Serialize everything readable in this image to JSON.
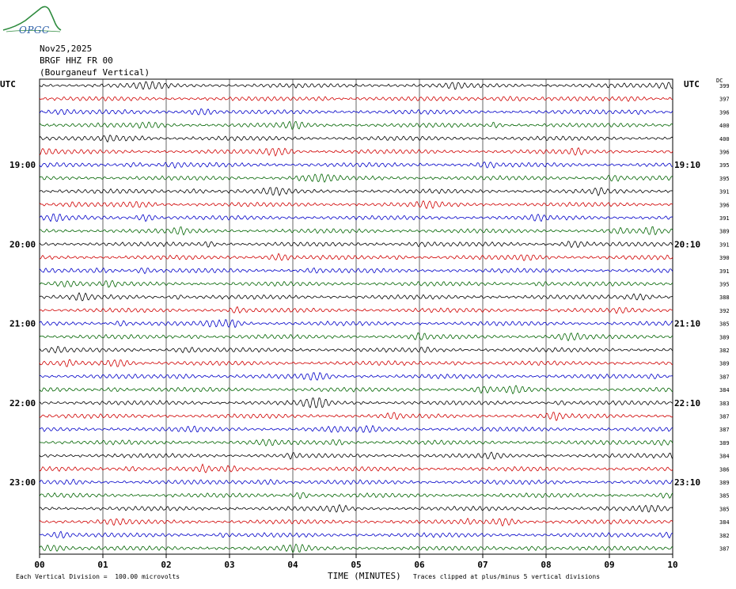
{
  "logo": {
    "text": "OPGC"
  },
  "header": {
    "date": "Nov25,2025",
    "station": "BRGF HHZ FR 00",
    "description": "(Bourganeuf Vertical)"
  },
  "chart_data": {
    "type": "line",
    "title": "BRGF HHZ FR 00",
    "xlabel": "TIME (MINUTES)",
    "ylabel_left": "UTC",
    "ylabel_right": "UTC",
    "dc_label": "DC",
    "xlim": [
      0,
      10
    ],
    "x_ticks": [
      "00",
      "01",
      "02",
      "03",
      "04",
      "05",
      "06",
      "07",
      "08",
      "09",
      "10"
    ],
    "left_time_labels": [
      {
        "row": 6,
        "label": "19:00"
      },
      {
        "row": 12,
        "label": "20:00"
      },
      {
        "row": 18,
        "label": "21:00"
      },
      {
        "row": 24,
        "label": "22:00"
      },
      {
        "row": 30,
        "label": "23:00"
      }
    ],
    "right_time_labels": [
      {
        "row": 6,
        "label": "19:10"
      },
      {
        "row": 12,
        "label": "20:10"
      },
      {
        "row": 18,
        "label": "21:10"
      },
      {
        "row": 24,
        "label": "22:10"
      },
      {
        "row": 30,
        "label": "23:10"
      }
    ],
    "trace_colors": [
      "#000000",
      "#d00000",
      "#0000c8",
      "#006400"
    ],
    "dc_offsets": [
      399,
      397,
      396,
      400,
      400,
      396,
      395,
      395,
      391,
      396,
      391,
      389,
      391,
      390,
      391,
      395,
      388,
      392,
      385,
      389,
      382,
      389,
      387,
      384,
      383,
      387,
      387,
      389,
      384,
      386,
      389,
      385,
      385,
      384,
      382,
      387
    ],
    "footer_left": "Each Vertical Division =  100.00 microvolts",
    "footer_right": "Traces clipped at plus/minus 5 vertical divisions"
  }
}
